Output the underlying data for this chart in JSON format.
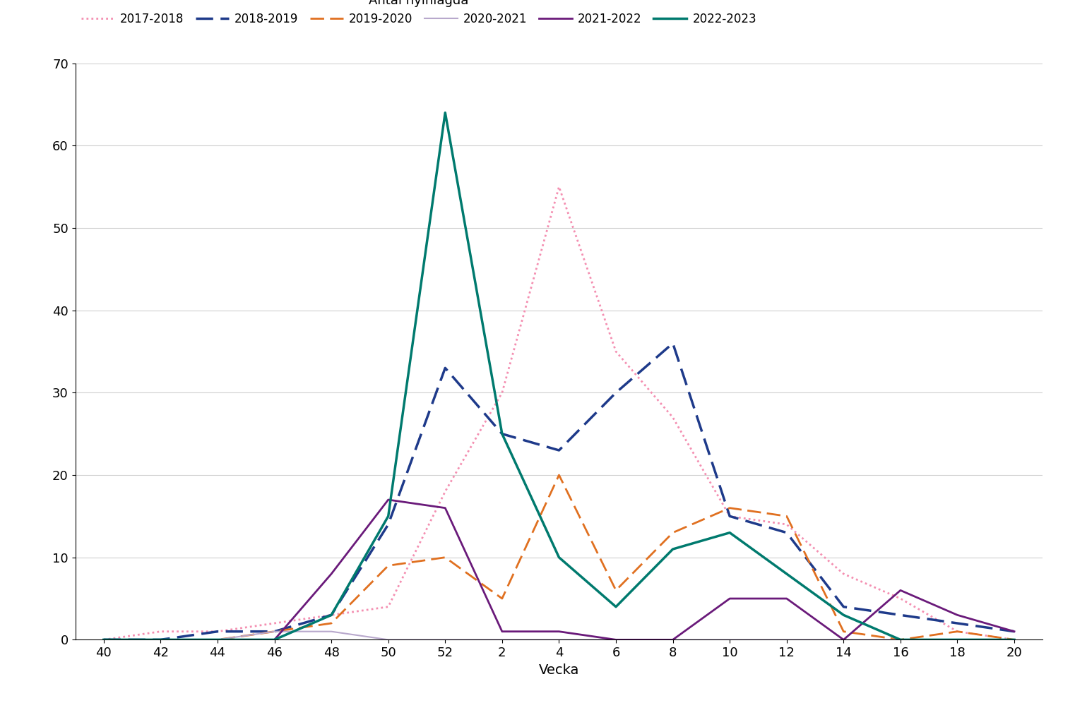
{
  "xlabel": "Vecka",
  "ylim": [
    0,
    70
  ],
  "yticks": [
    0,
    10,
    20,
    30,
    40,
    50,
    60,
    70
  ],
  "xtick_positions": [
    40,
    42,
    44,
    46,
    48,
    50,
    52,
    54,
    56,
    58,
    60,
    62,
    64,
    66,
    68,
    70,
    72
  ],
  "xtick_labels": [
    "40",
    "42",
    "44",
    "46",
    "48",
    "50",
    "52",
    "2",
    "4",
    "6",
    "8",
    "10",
    "12",
    "14",
    "16",
    "18",
    "20"
  ],
  "xlim": [
    39,
    73
  ],
  "series": [
    {
      "label": "2017-2018",
      "color": "#f48fb1",
      "linestyle": "dotted",
      "linewidth": 2.0,
      "data_x": [
        40,
        42,
        44,
        46,
        48,
        50,
        52,
        54,
        56,
        58,
        60,
        62,
        64,
        66,
        68,
        70,
        72
      ],
      "data_y": [
        0,
        1,
        1,
        2,
        3,
        4,
        18,
        30,
        55,
        35,
        27,
        15,
        14,
        8,
        5,
        1,
        0
      ]
    },
    {
      "label": "2018-2019",
      "color": "#1e3a8a",
      "linestyle": "dashed",
      "linewidth": 2.5,
      "data_x": [
        40,
        42,
        44,
        46,
        48,
        50,
        52,
        54,
        56,
        58,
        60,
        62,
        64,
        66,
        68,
        70,
        72
      ],
      "data_y": [
        0,
        0,
        1,
        1,
        3,
        14,
        33,
        25,
        23,
        30,
        36,
        15,
        13,
        4,
        3,
        2,
        1
      ]
    },
    {
      "label": "2019-2020",
      "color": "#e07020",
      "linestyle": "dashed",
      "linewidth": 2.0,
      "data_x": [
        40,
        42,
        44,
        46,
        48,
        50,
        52,
        54,
        56,
        58,
        60,
        62,
        64,
        66,
        68,
        70,
        72
      ],
      "data_y": [
        0,
        0,
        0,
        1,
        2,
        9,
        10,
        5,
        20,
        6,
        13,
        16,
        15,
        1,
        0,
        1,
        0
      ]
    },
    {
      "label": "2020-2021",
      "color": "#b8a8cc",
      "linestyle": "solid",
      "linewidth": 1.5,
      "data_x": [
        40,
        42,
        44,
        46,
        48,
        50,
        52,
        54,
        56,
        58,
        60,
        62,
        64,
        66,
        68,
        70,
        72
      ],
      "data_y": [
        0,
        0,
        0,
        1,
        1,
        0,
        0,
        0,
        0,
        0,
        0,
        0,
        0,
        0,
        0,
        0,
        0
      ]
    },
    {
      "label": "2021-2022",
      "color": "#6a1a7a",
      "linestyle": "solid",
      "linewidth": 2.0,
      "data_x": [
        40,
        42,
        44,
        46,
        48,
        50,
        52,
        54,
        56,
        58,
        60,
        62,
        64,
        66,
        68,
        70,
        72
      ],
      "data_y": [
        0,
        0,
        0,
        0,
        8,
        17,
        16,
        1,
        1,
        0,
        0,
        5,
        5,
        0,
        6,
        3,
        1
      ]
    },
    {
      "label": "2022-2023",
      "color": "#007a6e",
      "linestyle": "solid",
      "linewidth": 2.5,
      "data_x": [
        40,
        42,
        44,
        46,
        48,
        50,
        52,
        54,
        56,
        58,
        60,
        62,
        64,
        66,
        68,
        70,
        72
      ],
      "data_y": [
        0,
        0,
        0,
        0,
        3,
        15,
        64,
        25,
        10,
        4,
        11,
        13,
        8,
        3,
        0,
        0,
        0
      ]
    }
  ],
  "legend_title": "Antal nyinlagda",
  "background_color": "#ffffff",
  "grid_color": "#d0d0d0"
}
